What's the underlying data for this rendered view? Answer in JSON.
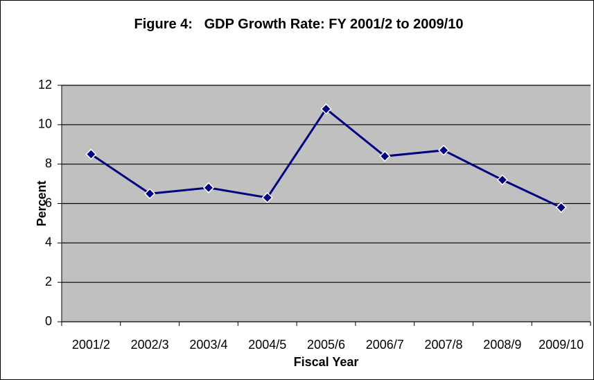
{
  "chart_data": {
    "type": "line",
    "title": "Figure 4:   GDP Growth Rate: FY 2001/2 to 2009/10",
    "x_label": "Fiscal Year",
    "y_label": "Percent",
    "categories": [
      "2001/2",
      "2002/3",
      "2003/4",
      "2004/5",
      "2005/6",
      "2006/7",
      "2007/8",
      "2008/9",
      "2009/10"
    ],
    "series": [
      {
        "name": "GDP Growth Rate",
        "color": "#000080",
        "values": [
          8.5,
          6.5,
          6.8,
          6.3,
          10.8,
          8.4,
          8.7,
          7.2,
          5.8
        ]
      }
    ],
    "ylim": [
      0,
      12
    ],
    "yticks": [
      0,
      2,
      4,
      6,
      8,
      10,
      12
    ],
    "grid": true
  }
}
